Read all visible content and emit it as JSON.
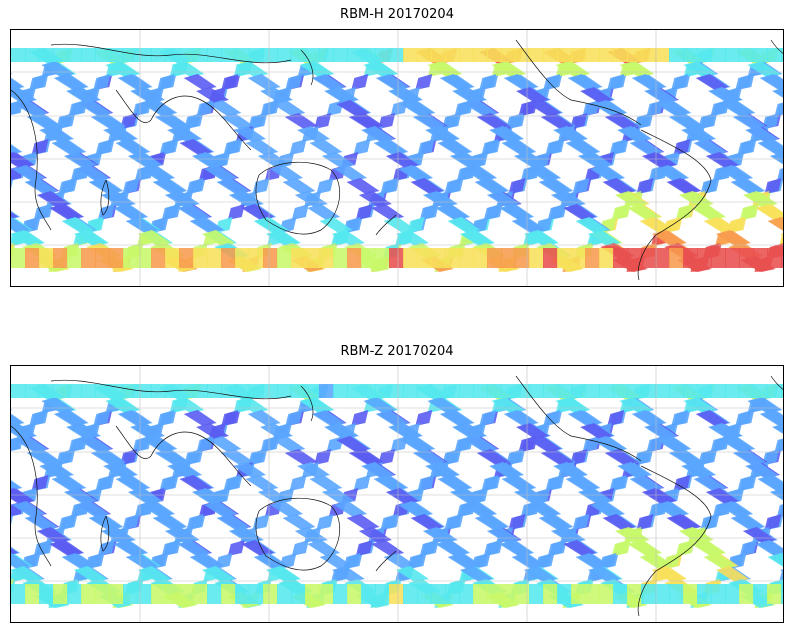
{
  "panels": [
    {
      "title": "RBM-H 20170204",
      "variant": "H"
    },
    {
      "title": "RBM-Z 20170204",
      "variant": "Z"
    }
  ],
  "colors": {
    "low": "#5a5cf2",
    "mid_low": "#5aa6ff",
    "mid": "#55e8ee",
    "mid_high": "#c8f86a",
    "high_yellow": "#f7e05a",
    "high_orange": "#f79c4f",
    "max": "#e85050",
    "coast": "#111111",
    "grid": "#bfbfbf"
  }
}
